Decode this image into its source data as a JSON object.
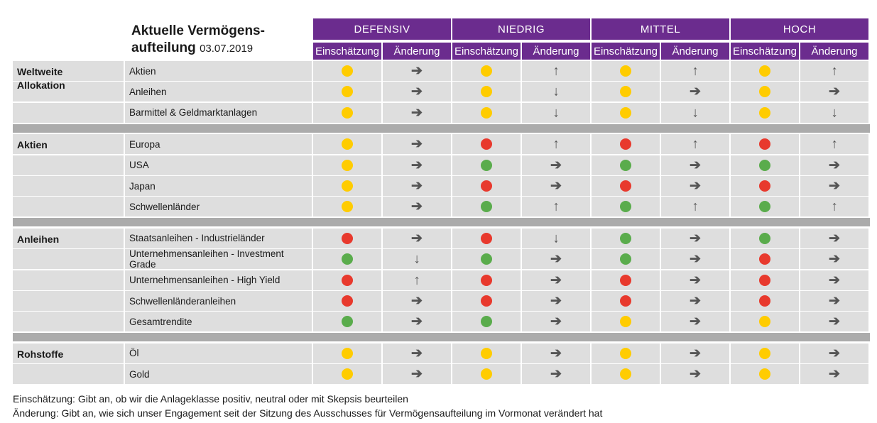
{
  "title": {
    "main": "Aktuelle Vermögens-aufteilung",
    "date": "03.07.2019"
  },
  "groups": [
    "DEFENSIV",
    "NIEDRIG",
    "MITTEL",
    "HOCH"
  ],
  "subheaders": [
    "Einschätzung",
    "Änderung"
  ],
  "colors": {
    "purple": "#6b2c8e",
    "yellow": "#ffcc00",
    "red": "#e8392d",
    "green": "#5aac4c",
    "arrow": "#555555"
  },
  "sections": [
    {
      "category": "Weltweite Allokation",
      "rows": [
        {
          "label": "Aktien",
          "cells": [
            "yellow",
            "right",
            "yellow",
            "up",
            "yellow",
            "up",
            "yellow",
            "up"
          ]
        },
        {
          "label": "Anleihen",
          "cells": [
            "yellow",
            "right",
            "yellow",
            "down",
            "yellow",
            "right",
            "yellow",
            "right"
          ]
        },
        {
          "label": "Barmittel & Geldmarktanlagen",
          "cells": [
            "yellow",
            "right",
            "yellow",
            "down",
            "yellow",
            "down",
            "yellow",
            "down"
          ]
        }
      ]
    },
    {
      "category": "Aktien",
      "rows": [
        {
          "label": "Europa",
          "cells": [
            "yellow",
            "right",
            "red",
            "up",
            "red",
            "up",
            "red",
            "up"
          ]
        },
        {
          "label": "USA",
          "cells": [
            "yellow",
            "right",
            "green",
            "right",
            "green",
            "right",
            "green",
            "right"
          ]
        },
        {
          "label": "Japan",
          "cells": [
            "yellow",
            "right",
            "red",
            "right",
            "red",
            "right",
            "red",
            "right"
          ]
        },
        {
          "label": "Schwellenländer",
          "cells": [
            "yellow",
            "right",
            "green",
            "up",
            "green",
            "up",
            "green",
            "up"
          ]
        }
      ]
    },
    {
      "category": "Anleihen",
      "rows": [
        {
          "label": "Staatsanleihen - Industrieländer",
          "cells": [
            "red",
            "right",
            "red",
            "down",
            "green",
            "right",
            "green",
            "right"
          ]
        },
        {
          "label": "Unternehmensanleihen - Investment Grade",
          "cells": [
            "green",
            "down",
            "green",
            "right",
            "green",
            "right",
            "red",
            "right"
          ]
        },
        {
          "label": "Unternehmensanleihen - High Yield",
          "cells": [
            "red",
            "up",
            "red",
            "right",
            "red",
            "right",
            "red",
            "right"
          ]
        },
        {
          "label": "Schwellenländeranleihen",
          "cells": [
            "red",
            "right",
            "red",
            "right",
            "red",
            "right",
            "red",
            "right"
          ]
        },
        {
          "label": "Gesamtrendite",
          "cells": [
            "green",
            "right",
            "green",
            "right",
            "yellow",
            "right",
            "yellow",
            "right"
          ]
        }
      ]
    },
    {
      "category": "Rohstoffe",
      "rows": [
        {
          "label": "Öl",
          "cells": [
            "yellow",
            "right",
            "yellow",
            "right",
            "yellow",
            "right",
            "yellow",
            "right"
          ]
        },
        {
          "label": "Gold",
          "cells": [
            "yellow",
            "right",
            "yellow",
            "right",
            "yellow",
            "right",
            "yellow",
            "right"
          ]
        }
      ]
    }
  ],
  "footer": [
    "Einschätzung: Gibt an, ob wir die Anlageklasse positiv, neutral oder mit Skepsis beurteilen",
    "Änderung: Gibt an, wie sich unser Engagement seit der Sitzung des Ausschusses für Vermögensaufteilung im Vormonat verändert hat"
  ]
}
